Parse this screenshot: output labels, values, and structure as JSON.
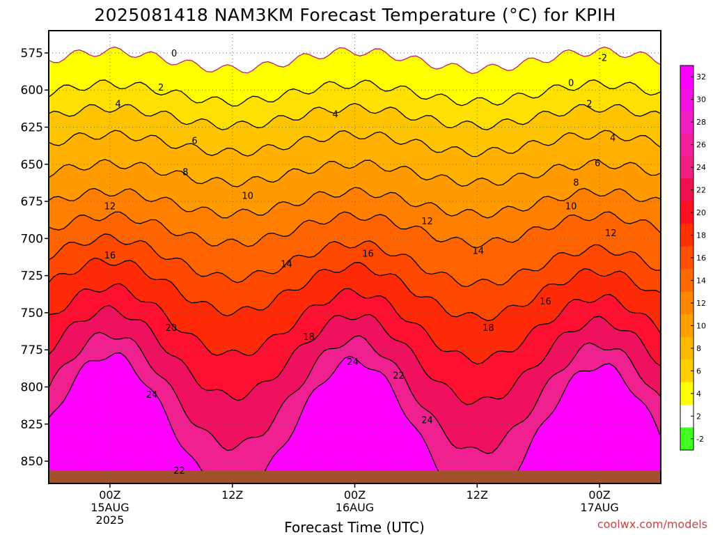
{
  "chart_data": {
    "type": "heatmap",
    "title": "2025081418 NAM3KM Forecast Temperature (°C) for KPIH",
    "xlabel": "Forecast Time (UTC)",
    "ylabel": "",
    "y_ticks": [
      "575",
      "600",
      "625",
      "650",
      "675",
      "700",
      "725",
      "750",
      "775",
      "800",
      "825",
      "850"
    ],
    "y_values": [
      575,
      600,
      625,
      650,
      675,
      700,
      725,
      750,
      775,
      800,
      825,
      850
    ],
    "ylim": [
      560,
      865
    ],
    "y_inverted": true,
    "x_ticks": [
      {
        "hour": 6,
        "lines": [
          "00Z",
          "15AUG",
          "2025"
        ]
      },
      {
        "hour": 18,
        "lines": [
          "12Z"
        ]
      },
      {
        "hour": 30,
        "lines": [
          "00Z",
          "16AUG"
        ]
      },
      {
        "hour": 42,
        "lines": [
          "12Z"
        ]
      },
      {
        "hour": 54,
        "lines": [
          "00Z",
          "17AUG"
        ]
      }
    ],
    "xlim": [
      0,
      60
    ],
    "colorbar": {
      "labels": [
        "32",
        "30",
        "28",
        "26",
        "24",
        "22",
        "20",
        "18",
        "16",
        "14",
        "12",
        "10",
        "8",
        "6",
        "4",
        "2",
        "-2"
      ],
      "colors": [
        "#ff00ff",
        "#f010e0",
        "#f020c0",
        "#f0209a",
        "#f02080",
        "#f01050",
        "#ff1020",
        "#ff3000",
        "#ff5000",
        "#ff6a00",
        "#ff8800",
        "#ffa000",
        "#ffb800",
        "#ffd000",
        "#ffff00",
        "#ffffff",
        "#40ff20"
      ]
    },
    "contour_levels": [
      -2,
      0,
      2,
      4,
      6,
      8,
      10,
      12,
      14,
      16,
      18,
      20,
      22,
      24
    ],
    "contour_labels": [
      {
        "text": "0",
        "hour": 12.3,
        "p": 575
      },
      {
        "text": "0",
        "hour": 51.2,
        "p": 595
      },
      {
        "text": "-2",
        "hour": 54.3,
        "p": 578
      },
      {
        "text": "2",
        "hour": 11.0,
        "p": 598
      },
      {
        "text": "2",
        "hour": 53.0,
        "p": 609
      },
      {
        "text": "4",
        "hour": 6.8,
        "p": 609
      },
      {
        "text": "4",
        "hour": 28.1,
        "p": 616
      },
      {
        "text": "4",
        "hour": 55.3,
        "p": 632
      },
      {
        "text": "6",
        "hour": 14.3,
        "p": 634
      },
      {
        "text": "6",
        "hour": 53.8,
        "p": 649
      },
      {
        "text": "8",
        "hour": 13.4,
        "p": 655
      },
      {
        "text": "8",
        "hour": 51.7,
        "p": 662
      },
      {
        "text": "10",
        "hour": 19.5,
        "p": 671
      },
      {
        "text": "10",
        "hour": 51.2,
        "p": 678
      },
      {
        "text": "12",
        "hour": 6.0,
        "p": 678
      },
      {
        "text": "12",
        "hour": 37.1,
        "p": 688
      },
      {
        "text": "12",
        "hour": 55.1,
        "p": 696
      },
      {
        "text": "14",
        "hour": 23.3,
        "p": 717
      },
      {
        "text": "14",
        "hour": 42.1,
        "p": 708
      },
      {
        "text": "16",
        "hour": 6.0,
        "p": 711
      },
      {
        "text": "16",
        "hour": 31.3,
        "p": 710
      },
      {
        "text": "16",
        "hour": 48.7,
        "p": 742
      },
      {
        "text": "18",
        "hour": 25.5,
        "p": 766
      },
      {
        "text": "18",
        "hour": 43.1,
        "p": 760
      },
      {
        "text": "20",
        "hour": 12.0,
        "p": 760
      },
      {
        "text": "22",
        "hour": 34.3,
        "p": 792
      },
      {
        "text": "22",
        "hour": 12.8,
        "p": 856
      },
      {
        "text": "24",
        "hour": 10.1,
        "p": 805
      },
      {
        "text": "24",
        "hour": 29.8,
        "p": 783
      },
      {
        "text": "24",
        "hour": 37.1,
        "p": 822
      }
    ],
    "grid": true
  },
  "credit": "coolwx.com/models"
}
